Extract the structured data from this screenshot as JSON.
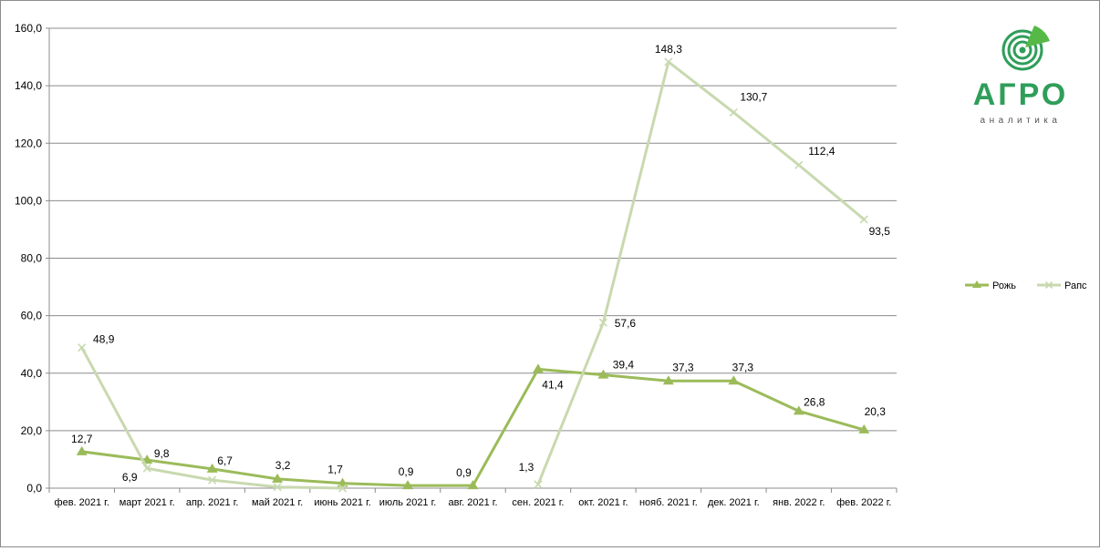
{
  "logo": {
    "brand": "АГРО",
    "tagline": "аналитика",
    "brand_color": "#2f9e5a",
    "accent_color": "#56b947"
  },
  "chart_data": {
    "type": "line",
    "title": "",
    "xlabel": "",
    "ylabel": "",
    "ylim": [
      0,
      160
    ],
    "yticks": [
      "0,0",
      "20,0",
      "40,0",
      "60,0",
      "80,0",
      "100,0",
      "120,0",
      "140,0",
      "160,0"
    ],
    "grid": true,
    "legend_position": "right",
    "categories": [
      "фев. 2021 г.",
      "март 2021 г.",
      "апр. 2021 г.",
      "май 2021 г.",
      "июнь 2021 г.",
      "июль 2021 г.",
      "авг. 2021 г.",
      "сен. 2021 г.",
      "окт. 2021 г.",
      "нояб. 2021 г.",
      "дек. 2021 г.",
      "янв. 2022 г.",
      "фев. 2022 г."
    ],
    "series": [
      {
        "name": "Рожь",
        "marker": "triangle",
        "color": "#9bbb59",
        "values": [
          12.7,
          9.8,
          6.7,
          3.2,
          1.7,
          0.9,
          0.9,
          41.4,
          39.4,
          37.3,
          37.3,
          26.8,
          20.3
        ],
        "labels": [
          "12,7",
          "9,8",
          "6,7",
          "3,2",
          "1,7",
          "0,9",
          "0,9",
          "41,4",
          "39,4",
          "37,3",
          "37,3",
          "26,8",
          "20,3"
        ]
      },
      {
        "name": "Рапс",
        "marker": "x",
        "color": "#c8d9af",
        "values": [
          48.9,
          6.9,
          2.8,
          0.4,
          0.0,
          null,
          null,
          1.3,
          57.6,
          148.3,
          130.7,
          112.4,
          93.5
        ],
        "labels": [
          "48,9",
          "6,9",
          "",
          "",
          "",
          "",
          "",
          "1,3",
          "57,6",
          "148,3",
          "130,7",
          "112,4",
          "93,5"
        ]
      }
    ]
  }
}
